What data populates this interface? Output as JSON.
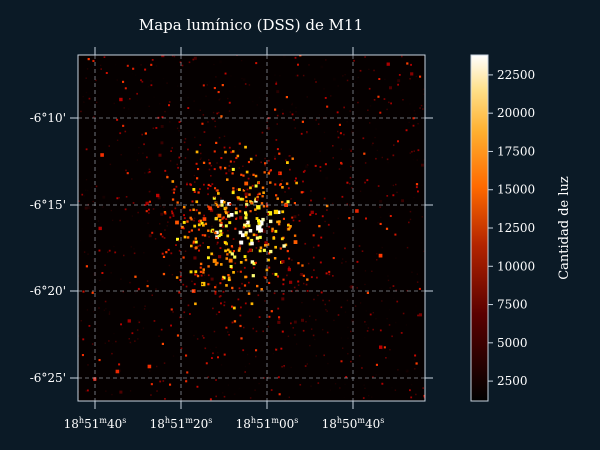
{
  "colors": {
    "background": "#0b1a26",
    "frame": "#c8d4e0",
    "grid": "#b9c4d0",
    "text": "#ffffff"
  },
  "chart_data": {
    "type": "heatmap",
    "title": "Mapa lumínico (DSS) de M11",
    "colormap": "afmhot",
    "xlabel": "",
    "ylabel": "",
    "x_axis": {
      "coordinate": "right ascension",
      "ticks": [
        {
          "h": "18",
          "m": "51",
          "s": "40"
        },
        {
          "h": "18",
          "m": "51",
          "s": "20"
        },
        {
          "h": "18",
          "m": "51",
          "s": "00"
        },
        {
          "h": "18",
          "m": "50",
          "s": "40"
        }
      ]
    },
    "y_axis": {
      "coordinate": "declination",
      "ticks": [
        "-6°10'",
        "-6°15'",
        "-6°20'",
        "-6°25'"
      ]
    },
    "colorbar": {
      "label": "Cantidad de luz",
      "range": [
        1200,
        23800
      ],
      "ticks": [
        2500,
        5000,
        7500,
        10000,
        12500,
        15000,
        17500,
        20000,
        22500
      ],
      "tick_labels": [
        "2500",
        "5000",
        "7500",
        "10000",
        "12500",
        "15000",
        "17500",
        "20000",
        "22500"
      ]
    },
    "field": {
      "description_values": "star field intensities",
      "background_level": 1500,
      "cluster_peak_level": 23000,
      "star_count": 1400,
      "cluster_center_fraction": [
        0.47,
        0.5
      ]
    }
  }
}
